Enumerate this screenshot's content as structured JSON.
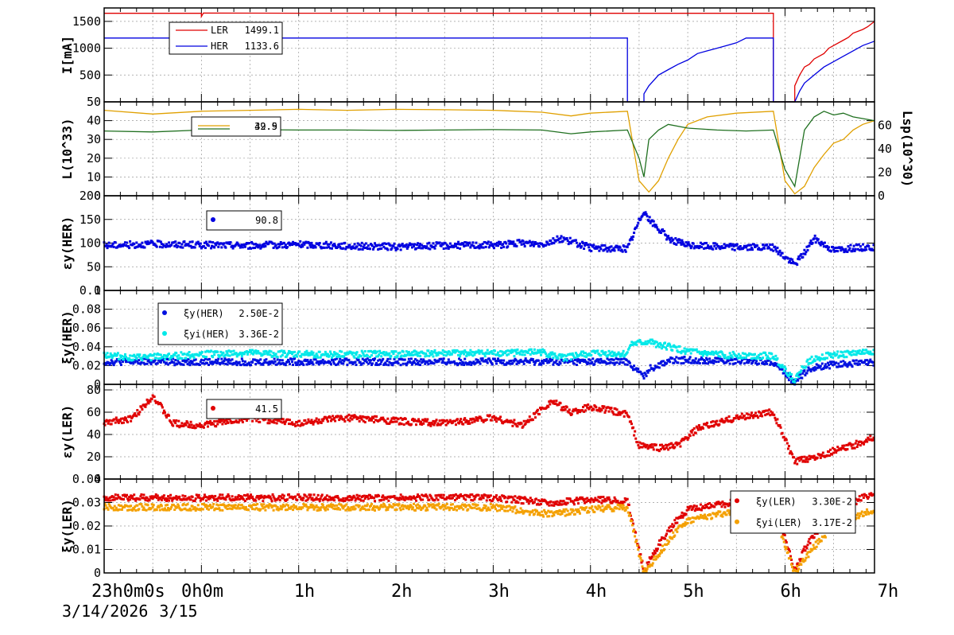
{
  "figure": {
    "time_axis": {
      "tick_labels": [
        "23h0m0s",
        "0h0m",
        "1h",
        "2h",
        "3h",
        "4h",
        "5h",
        "6h",
        "7h"
      ],
      "date_labels": [
        "3/14/2026",
        "3/15"
      ],
      "range_hours": [
        "23:00",
        "07:55"
      ]
    }
  },
  "chart_data": [
    {
      "id": "current",
      "type": "line",
      "ylabel": "I[mA]",
      "ylim": [
        0,
        1750
      ],
      "yticks": [
        500,
        1000,
        1500
      ],
      "grid": true,
      "legend_placement": "top-left",
      "series": [
        {
          "name": "LER",
          "legend_value": "1499.1",
          "color": "#e00000",
          "x_hours": [
            0,
            1.0,
            1.0,
            1.02,
            2,
            4,
            5.4,
            6.88,
            6.88,
            7.1,
            7.1,
            7.15,
            7.2,
            7.25,
            7.3,
            7.4,
            7.45,
            7.5,
            7.6,
            7.65,
            7.7,
            7.8,
            7.85,
            7.92
          ],
          "y": [
            1650,
            1650,
            1590,
            1655,
            1652,
            1650,
            1650,
            1650,
            0,
            0,
            300,
            500,
            650,
            700,
            800,
            900,
            1000,
            1050,
            1150,
            1200,
            1280,
            1350,
            1400,
            1500
          ]
        },
        {
          "name": "HER",
          "legend_value": "1133.6",
          "color": "#0000e0",
          "x_hours": [
            0,
            1,
            3,
            5.38,
            5.38,
            5.55,
            5.55,
            5.6,
            5.7,
            5.8,
            5.9,
            6.0,
            6.1,
            6.2,
            6.3,
            6.4,
            6.5,
            6.6,
            6.88,
            6.88,
            7.1,
            7.15,
            7.2,
            7.3,
            7.4,
            7.5,
            7.6,
            7.7,
            7.8,
            7.92
          ],
          "y": [
            1190,
            1190,
            1190,
            1190,
            0,
            0,
            150,
            300,
            500,
            600,
            700,
            780,
            900,
            950,
            1000,
            1050,
            1100,
            1190,
            1190,
            0,
            0,
            200,
            350,
            500,
            650,
            750,
            850,
            950,
            1050,
            1130
          ]
        }
      ]
    },
    {
      "id": "luminosity",
      "type": "line",
      "ylabel": "L(10^33)",
      "y2label": "Lsp(10^30)",
      "ylim": [
        0,
        50
      ],
      "yticks": [
        0,
        10,
        20,
        30,
        40,
        50
      ],
      "y2ticks": [
        0,
        20,
        40,
        60
      ],
      "grid": true,
      "legend_placement": "top-left",
      "legend_value_overlap": [
        "39.9",
        "42.5"
      ],
      "series": [
        {
          "name": "",
          "color": "#e0a000",
          "x_hours": [
            0,
            0.5,
            1,
            1.5,
            2,
            2.5,
            3,
            3.5,
            4,
            4.5,
            4.8,
            5.0,
            5.38,
            5.5,
            5.6,
            5.7,
            5.8,
            5.9,
            6.0,
            6.2,
            6.5,
            6.88,
            7.0,
            7.1,
            7.2,
            7.3,
            7.4,
            7.5,
            7.6,
            7.7,
            7.8,
            7.92
          ],
          "y": [
            45.5,
            43.5,
            45.0,
            45.5,
            46,
            45.5,
            46,
            45.8,
            45.5,
            44.5,
            42.5,
            44,
            45,
            8,
            2,
            8,
            20,
            30,
            38,
            42,
            44,
            45,
            8,
            1,
            5,
            15,
            22,
            28,
            30,
            35,
            38,
            40
          ]
        },
        {
          "name": "",
          "color": "#207020",
          "x_hours": [
            0,
            0.5,
            1,
            1.5,
            2,
            2.5,
            3,
            3.5,
            4,
            4.5,
            4.8,
            5.0,
            5.38,
            5.5,
            5.55,
            5.6,
            5.7,
            5.8,
            6.0,
            6.3,
            6.6,
            6.88,
            7.0,
            7.1,
            7.2,
            7.3,
            7.4,
            7.5,
            7.6,
            7.7,
            7.92
          ],
          "y": [
            34.5,
            34,
            35,
            35.2,
            35,
            35,
            34.8,
            35,
            35.2,
            35,
            33,
            34,
            35,
            20,
            10,
            30,
            35,
            38,
            36,
            35,
            34.5,
            35,
            14,
            5,
            35,
            42,
            45,
            43,
            44,
            42,
            40
          ]
        }
      ]
    },
    {
      "id": "emit-her",
      "type": "scatter",
      "ylabel": "εy(HER)",
      "ylim": [
        0,
        200
      ],
      "yticks": [
        0,
        50,
        100,
        150,
        200
      ],
      "grid": true,
      "legend_placement": "top-left",
      "series": [
        {
          "name": "",
          "legend_value": "90.8",
          "color": "#0000e0",
          "x_hours": [
            0,
            0.5,
            1,
            1.5,
            2,
            2.5,
            3,
            3.5,
            4,
            4.3,
            4.5,
            4.7,
            5.0,
            5.38,
            5.55,
            5.6,
            5.7,
            5.8,
            6.0,
            6.5,
            6.88,
            7.1,
            7.2,
            7.3,
            7.5,
            7.7,
            7.92
          ],
          "y": [
            95,
            98,
            96,
            95,
            97,
            94,
            92,
            95,
            96,
            100,
            98,
            110,
            90,
            88,
            170,
            150,
            130,
            110,
            95,
            92,
            90,
            55,
            80,
            110,
            85,
            90,
            92
          ]
        }
      ]
    },
    {
      "id": "xi-her",
      "type": "scatter",
      "ylabel": "ξy(HER)",
      "ylim": [
        0,
        0.1
      ],
      "yticks": [
        0,
        0.02,
        0.04,
        0.06,
        0.08,
        0.1
      ],
      "ytick_labels": [
        "0",
        "0.02",
        "0.04",
        "0.06",
        "0.08",
        "0.1"
      ],
      "grid": true,
      "legend_placement": "top-left",
      "series": [
        {
          "name": "ξy(HER)",
          "legend_value": "2.50E-2",
          "color": "#0010e0",
          "x_hours": [
            0,
            1,
            2,
            3,
            4,
            4.6,
            5.0,
            5.38,
            5.55,
            5.6,
            5.8,
            6.0,
            6.5,
            6.88,
            7.1,
            7.2,
            7.3,
            7.5,
            7.7,
            7.92
          ],
          "y": [
            0.024,
            0.024,
            0.024,
            0.024,
            0.024,
            0.024,
            0.024,
            0.024,
            0.008,
            0.016,
            0.025,
            0.026,
            0.025,
            0.024,
            0.002,
            0.012,
            0.018,
            0.021,
            0.022,
            0.023
          ]
        },
        {
          "name": "ξyi(HER)",
          "legend_value": "3.36E-2",
          "color": "#00e8e8",
          "x_hours": [
            0,
            0.3,
            1,
            1.5,
            2,
            2.5,
            3,
            3.5,
            4,
            4.5,
            4.7,
            5.0,
            5.38,
            5.4,
            5.6,
            5.8,
            6.0,
            6.2,
            6.5,
            6.88,
            7.1,
            7.2,
            7.3,
            7.5,
            7.7,
            7.92
          ],
          "y": [
            0.032,
            0.028,
            0.032,
            0.033,
            0.032,
            0.032,
            0.032,
            0.033,
            0.033,
            0.034,
            0.028,
            0.033,
            0.032,
            0.042,
            0.045,
            0.04,
            0.035,
            0.032,
            0.031,
            0.03,
            0.004,
            0.02,
            0.028,
            0.031,
            0.033,
            0.035
          ]
        }
      ]
    },
    {
      "id": "emit-ler",
      "type": "scatter",
      "ylabel": "εy(LER)",
      "ylim": [
        0,
        85
      ],
      "yticks": [
        0,
        20,
        40,
        60,
        80
      ],
      "grid": true,
      "legend_placement": "top-left",
      "series": [
        {
          "name": "",
          "legend_value": "41.5",
          "color": "#e00000",
          "x_hours": [
            0,
            0.3,
            0.5,
            0.7,
            1,
            1.5,
            2,
            2.5,
            3,
            3.5,
            4,
            4.3,
            4.6,
            4.8,
            5.0,
            5.38,
            5.5,
            5.7,
            5.9,
            6.1,
            6.3,
            6.5,
            6.88,
            7.1,
            7.3,
            7.5,
            7.7,
            7.92
          ],
          "y": [
            50,
            55,
            75,
            50,
            48,
            55,
            50,
            55,
            52,
            50,
            55,
            48,
            70,
            60,
            65,
            58,
            30,
            28,
            30,
            45,
            50,
            55,
            60,
            15,
            20,
            25,
            30,
            38
          ]
        }
      ]
    },
    {
      "id": "xi-ler",
      "type": "scatter",
      "ylabel": "ξy(LER)",
      "ylim": [
        0,
        0.04
      ],
      "yticks": [
        0,
        0.01,
        0.02,
        0.03,
        0.04
      ],
      "ytick_labels": [
        "0",
        "0.01",
        "0.02",
        "0.03",
        "0.04"
      ],
      "grid": true,
      "legend_placement": "top-right",
      "series": [
        {
          "name": "ξy(LER)",
          "legend_value": "3.30E-2",
          "color": "#e00000",
          "x_hours": [
            0,
            1,
            2,
            3,
            4,
            4.6,
            5.0,
            5.38,
            5.55,
            5.7,
            5.9,
            6.0,
            6.3,
            6.5,
            6.88,
            7.1,
            7.2,
            7.4,
            7.6,
            7.8,
            7.92
          ],
          "y": [
            0.032,
            0.032,
            0.032,
            0.032,
            0.032,
            0.03,
            0.031,
            0.031,
            0.001,
            0.012,
            0.023,
            0.027,
            0.029,
            0.03,
            0.031,
            0.001,
            0.01,
            0.022,
            0.028,
            0.032,
            0.033
          ]
        },
        {
          "name": "ξyi(LER)",
          "legend_value": "3.17E-2",
          "color": "#f4a000",
          "x_hours": [
            0,
            1,
            2,
            3,
            4,
            4.6,
            5.0,
            5.38,
            5.55,
            5.7,
            5.9,
            6.0,
            6.3,
            6.5,
            6.88,
            7.1,
            7.2,
            7.4,
            7.6,
            7.8,
            7.92
          ],
          "y": [
            0.028,
            0.028,
            0.028,
            0.028,
            0.028,
            0.025,
            0.027,
            0.028,
            0.0,
            0.008,
            0.019,
            0.022,
            0.025,
            0.026,
            0.027,
            0.0,
            0.006,
            0.016,
            0.022,
            0.025,
            0.027
          ]
        }
      ]
    }
  ]
}
